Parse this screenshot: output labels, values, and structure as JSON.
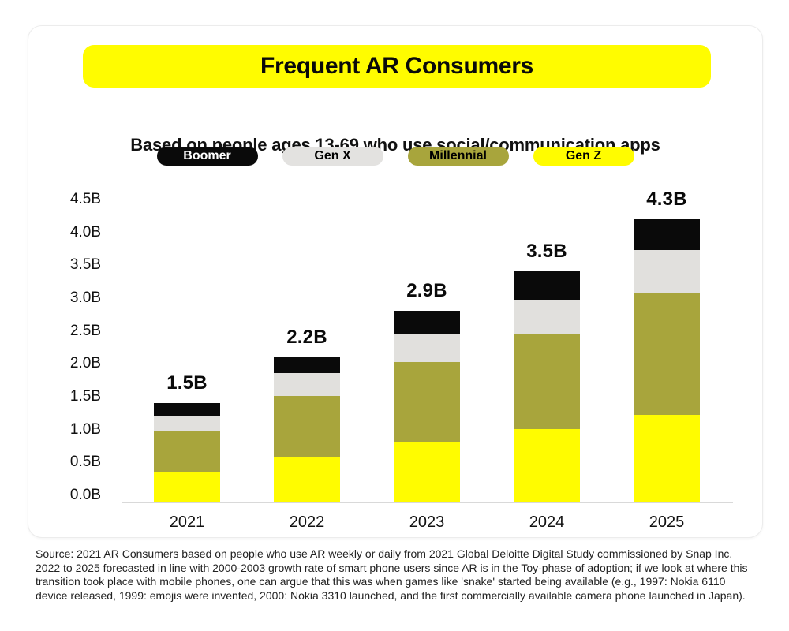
{
  "header": {
    "title": "Frequent AR Consumers",
    "subtitle": "Based on people ages 13-69 who use social/communication apps",
    "banner_color": "#FFFC00"
  },
  "legend": [
    {
      "label": "Boomer",
      "bg": "#0A0A0A",
      "text_color": "#FFFFFF"
    },
    {
      "label": "Gen X",
      "bg": "#E3E2E0",
      "text_color": "#000000"
    },
    {
      "label": "Millennial",
      "bg": "#A8A53C",
      "text_color": "#000000"
    },
    {
      "label": "Gen Z",
      "bg": "#FFFC00",
      "text_color": "#000000"
    }
  ],
  "chart_data": {
    "type": "bar",
    "stacked": true,
    "stack_order": "bottom_to_top",
    "title": "Frequent AR Consumers",
    "subtitle": "Based on people ages 13-69 who use social/communication apps",
    "xlabel": "",
    "ylabel": "",
    "unit": "billions of people",
    "categories": [
      "2021",
      "2022",
      "2023",
      "2024",
      "2025"
    ],
    "series": [
      {
        "name": "Gen Z",
        "color": "#FFFC00",
        "values": [
          0.45,
          0.68,
          0.9,
          1.1,
          1.32
        ]
      },
      {
        "name": "Millennial",
        "color": "#A8A53C",
        "values": [
          0.62,
          0.93,
          1.22,
          1.45,
          1.85
        ]
      },
      {
        "name": "Gen X",
        "color": "#E1E0DD",
        "values": [
          0.24,
          0.35,
          0.44,
          0.52,
          0.66
        ]
      },
      {
        "name": "Boomer",
        "color": "#0A0A0A",
        "values": [
          0.19,
          0.24,
          0.34,
          0.43,
          0.47
        ]
      }
    ],
    "totals": [
      "1.5B",
      "2.2B",
      "2.9B",
      "3.5B",
      "4.3B"
    ],
    "yticks": [
      "0.0B",
      "0.5B",
      "1.0B",
      "1.5B",
      "2.0B",
      "2.5B",
      "3.0B",
      "3.5B",
      "4.0B",
      "4.5B"
    ],
    "ylim": [
      0,
      4.5
    ],
    "grid": false,
    "legend_position": "top"
  },
  "footer": {
    "source_text": "Source: 2021 AR Consumers based on people who use AR weekly or daily from 2021 Global Deloitte Digital Study commissioned by Snap Inc. 2022 to 2025 forecasted in line with 2000-2003 growth rate of smart phone users since AR is in the Toy-phase of adoption; if we look at where this transition took place with mobile phones, one can argue that this was when games like 'snake' started being available (e.g., 1997: Nokia 6110 device released, 1999: emojis were invented, 2000: Nokia 3310 launched, and the first commercially available camera phone launched in Japan)."
  }
}
